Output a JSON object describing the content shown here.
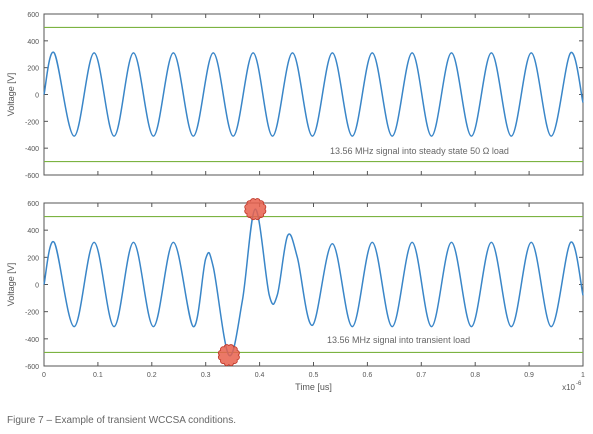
{
  "caption": "Figure 7 – Example of transient WCCSA conditions.",
  "chart_data": [
    {
      "type": "line",
      "ylabel": "Voltage [V]",
      "xlabel": "",
      "annotation": "13.56 MHz signal into steady state 50 Ω load",
      "xlim": [
        0,
        1.0
      ],
      "ylim": [
        -600,
        600
      ],
      "yticks": [
        -600,
        -400,
        -200,
        0,
        200,
        400,
        600
      ],
      "grid": false,
      "frequency_mhz": 13.56,
      "series": [
        {
          "role": "signal",
          "color": "#3a86c8",
          "amplitude": 310,
          "x": [
            0.0,
            0.019,
            0.056,
            0.093,
            0.13,
            0.166,
            0.203,
            0.24,
            0.277,
            0.314,
            0.351,
            0.388,
            0.424,
            0.461,
            0.498,
            0.535,
            0.572,
            0.609,
            0.646,
            0.683,
            0.719,
            0.756,
            0.793,
            0.83,
            0.867,
            0.904,
            0.941,
            0.977,
            1.0
          ],
          "y": [
            0,
            310,
            -310,
            310,
            -310,
            310,
            -310,
            310,
            -310,
            310,
            -310,
            310,
            -310,
            310,
            -310,
            310,
            -310,
            310,
            -310,
            310,
            -310,
            310,
            -310,
            310,
            -310,
            310,
            -310,
            310,
            -60
          ]
        },
        {
          "role": "limit",
          "color": "#7cb342",
          "x": [
            0,
            1.0
          ],
          "y": [
            500,
            500
          ]
        },
        {
          "role": "limit",
          "color": "#7cb342",
          "x": [
            0,
            1.0
          ],
          "y": [
            -500,
            -500
          ]
        }
      ]
    },
    {
      "type": "line",
      "ylabel": "Voltage [V]",
      "xlabel": "Time [us]",
      "x_multiplier": "x10",
      "x_multiplier_exp": "-6",
      "annotation": "13.56 MHz signal into transient load",
      "xlim": [
        0,
        1.0
      ],
      "ylim": [
        -600,
        600
      ],
      "xticks": [
        0,
        0.1,
        0.2,
        0.3,
        0.4,
        0.5,
        0.6,
        0.7,
        0.8,
        0.9,
        1
      ],
      "yticks": [
        -600,
        -400,
        -200,
        0,
        200,
        400,
        600
      ],
      "grid": false,
      "series": [
        {
          "role": "signal",
          "color": "#3a86c8",
          "x": [
            0.0,
            0.019,
            0.056,
            0.093,
            0.13,
            0.166,
            0.203,
            0.24,
            0.277,
            0.3,
            0.314,
            0.343,
            0.368,
            0.392,
            0.418,
            0.433,
            0.452,
            0.47,
            0.498,
            0.535,
            0.572,
            0.609,
            0.646,
            0.683,
            0.719,
            0.756,
            0.793,
            0.83,
            0.867,
            0.904,
            0.941,
            0.977,
            1.0
          ],
          "y": [
            0,
            310,
            -310,
            310,
            -310,
            310,
            -310,
            310,
            -310,
            190,
            130,
            -520,
            -120,
            555,
            -80,
            -75,
            360,
            200,
            -300,
            300,
            -310,
            310,
            -310,
            310,
            -310,
            310,
            -310,
            310,
            -310,
            310,
            -310,
            310,
            -80
          ]
        },
        {
          "role": "limit",
          "color": "#7cb342",
          "x": [
            0,
            1.0
          ],
          "y": [
            500,
            500
          ]
        },
        {
          "role": "limit",
          "color": "#7cb342",
          "x": [
            0,
            1.0
          ],
          "y": [
            -500,
            -500
          ]
        }
      ],
      "markers": [
        {
          "x": 0.343,
          "y": -520,
          "color": "#e8604c",
          "shape": "scalloped-circle"
        },
        {
          "x": 0.392,
          "y": 555,
          "color": "#e8604c",
          "shape": "scalloped-circle"
        }
      ]
    }
  ]
}
